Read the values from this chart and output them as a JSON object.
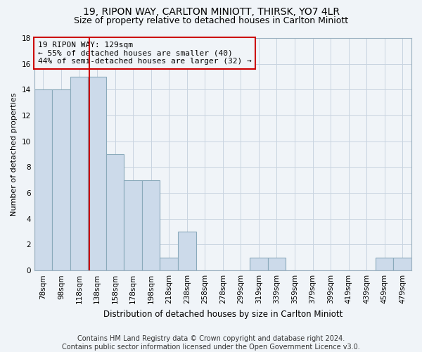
{
  "title1": "19, RIPON WAY, CARLTON MINIOTT, THIRSK, YO7 4LR",
  "title2": "Size of property relative to detached houses in Carlton Miniott",
  "xlabel": "Distribution of detached houses by size in Carlton Miniott",
  "ylabel": "Number of detached properties",
  "footnote": "Contains HM Land Registry data © Crown copyright and database right 2024.\nContains public sector information licensed under the Open Government Licence v3.0.",
  "bins": [
    "78sqm",
    "98sqm",
    "118sqm",
    "138sqm",
    "158sqm",
    "178sqm",
    "198sqm",
    "218sqm",
    "238sqm",
    "258sqm",
    "278sqm",
    "299sqm",
    "319sqm",
    "339sqm",
    "359sqm",
    "379sqm",
    "399sqm",
    "419sqm",
    "439sqm",
    "459sqm",
    "479sqm"
  ],
  "values": [
    14,
    14,
    15,
    15,
    9,
    7,
    7,
    1,
    3,
    0,
    0,
    0,
    1,
    1,
    0,
    0,
    0,
    0,
    0,
    1,
    1
  ],
  "bar_color": "#ccdaea",
  "bar_edge_color": "#8aaabb",
  "grid_color": "#c8d4e0",
  "vline_color": "#cc0000",
  "annotation_text": "19 RIPON WAY: 129sqm\n← 55% of detached houses are smaller (40)\n44% of semi-detached houses are larger (32) →",
  "annotation_box_color": "#cc0000",
  "annotation_text_color": "#000000",
  "ylim": [
    0,
    18
  ],
  "yticks": [
    0,
    2,
    4,
    6,
    8,
    10,
    12,
    14,
    16,
    18
  ],
  "background_color": "#f0f4f8",
  "title1_fontsize": 10,
  "title2_fontsize": 9,
  "footnote_fontsize": 7,
  "ylabel_fontsize": 8,
  "xlabel_fontsize": 8.5,
  "tick_fontsize": 7.5,
  "annot_fontsize": 8
}
